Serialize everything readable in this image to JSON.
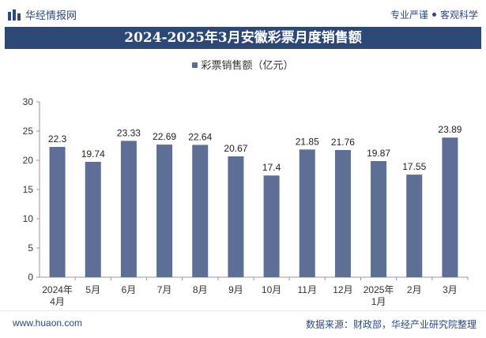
{
  "header": {
    "brand": "华经情报网",
    "tagline_left": "专业严谨",
    "tagline_right": "客观科学"
  },
  "chart_data": {
    "type": "bar",
    "title": "2024-2025年3月安徽彩票月度销售额",
    "categories": [
      [
        "2024年",
        "4月"
      ],
      [
        "5月"
      ],
      [
        "6月"
      ],
      [
        "7月"
      ],
      [
        "8月"
      ],
      [
        "9月"
      ],
      [
        "10月"
      ],
      [
        "11月"
      ],
      [
        "12月"
      ],
      [
        "2025年",
        "1月"
      ],
      [
        "2月"
      ],
      [
        "3月"
      ]
    ],
    "series": [
      {
        "name": "彩票销售额（亿元）",
        "values": [
          22.3,
          19.74,
          23.33,
          22.69,
          22.64,
          20.67,
          17.4,
          21.85,
          21.76,
          19.87,
          17.55,
          23.89
        ],
        "color": "#5d6f94"
      }
    ],
    "y_ticks": [
      0,
      5,
      10,
      15,
      20,
      25,
      30
    ],
    "ylim": [
      0,
      30
    ],
    "grid": false,
    "legend": "top-center"
  },
  "footer": {
    "url": "www.huaon.com",
    "source": "数据来源：财政部，华经产业研究院整理"
  }
}
